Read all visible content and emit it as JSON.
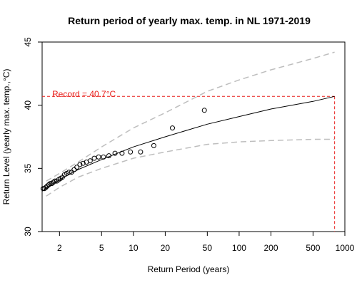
{
  "chart_data": {
    "type": "scatter",
    "title": "Return period of yearly max. temp. in NL 1971-2019",
    "xlabel": "Return Period (years)",
    "ylabel": "Return Level (yearly max. temp.,°C)",
    "x_scale": "log",
    "xlim": [
      1.37,
      1000
    ],
    "ylim": [
      30,
      45
    ],
    "x_ticks": [
      2,
      5,
      10,
      20,
      50,
      100,
      200,
      500,
      1000
    ],
    "y_ticks": [
      30,
      35,
      40,
      45
    ],
    "grid": false,
    "annotation": {
      "text": "Record = 40.7°C",
      "value": 40.7,
      "color": "#e8201c"
    },
    "colors": {
      "fit": "#000000",
      "ci": "#bebebe",
      "points": "#000000",
      "record": "#e8201c"
    },
    "series": [
      {
        "type": "points",
        "x": [
          1.02,
          1.04,
          1.06,
          1.09,
          1.11,
          1.14,
          1.17,
          1.2,
          1.23,
          1.26,
          1.29,
          1.33,
          1.36,
          1.4,
          1.44,
          1.49,
          1.53,
          1.58,
          1.63,
          1.69,
          1.75,
          1.81,
          1.88,
          1.96,
          2.04,
          2.13,
          2.23,
          2.34,
          2.46,
          2.6,
          2.75,
          2.92,
          3.12,
          3.34,
          3.6,
          3.9,
          4.26,
          4.69,
          5.21,
          5.86,
          6.7,
          7.81,
          9.38,
          11.7,
          15.6,
          23.4,
          46.9
        ],
        "y": [
          32.3,
          32.5,
          32.6,
          32.7,
          32.8,
          32.9,
          33.0,
          33.1,
          33.2,
          33.2,
          33.3,
          33.3,
          33.3,
          33.4,
          33.4,
          33.5,
          33.6,
          33.7,
          33.8,
          33.8,
          33.9,
          34.0,
          34.0,
          34.1,
          34.2,
          34.3,
          34.5,
          34.6,
          34.7,
          34.7,
          34.9,
          35.1,
          35.3,
          35.4,
          35.5,
          35.6,
          35.8,
          35.9,
          35.9,
          36.0,
          36.2,
          36.2,
          36.3,
          36.3,
          36.8,
          38.2,
          39.6
        ]
      },
      {
        "type": "line",
        "x": [
          1.37,
          1.6,
          2,
          3,
          5,
          10,
          20,
          50,
          100,
          200,
          500,
          800
        ],
        "y": [
          33.2,
          33.6,
          34.1,
          34.9,
          35.7,
          36.7,
          37.5,
          38.5,
          39.1,
          39.7,
          40.3,
          40.7
        ]
      },
      {
        "type": "ci-upper",
        "x": [
          1.5,
          2,
          3,
          5,
          10,
          20,
          50,
          100,
          200,
          500,
          800
        ],
        "y": [
          34.0,
          34.6,
          35.5,
          36.7,
          38.2,
          39.4,
          41.1,
          42.0,
          42.8,
          43.7,
          44.2
        ]
      },
      {
        "type": "ci-lower",
        "x": [
          1.5,
          2,
          3,
          5,
          10,
          20,
          50,
          100,
          200,
          500,
          800
        ],
        "y": [
          32.8,
          33.5,
          34.3,
          35.0,
          35.8,
          36.3,
          36.9,
          37.1,
          37.2,
          37.3,
          37.3
        ]
      }
    ]
  }
}
